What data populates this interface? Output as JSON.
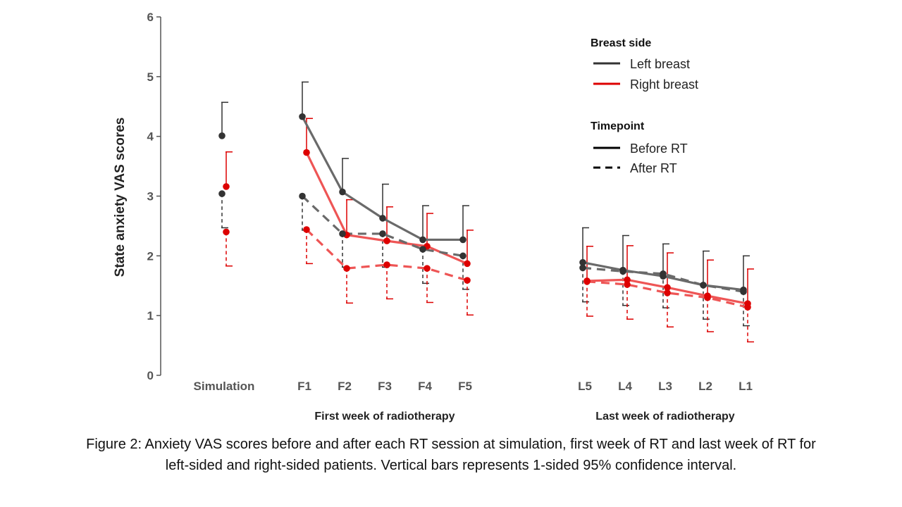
{
  "chart_data": {
    "type": "line",
    "ylabel": "State anxiety VAS scores",
    "ylim": [
      0,
      6
    ],
    "yticks": [
      "0",
      "1",
      "2",
      "3",
      "4",
      "5",
      "6"
    ],
    "categories": [
      "Simulation",
      "F1",
      "F2",
      "F3",
      "F4",
      "F5",
      "L5",
      "L4",
      "L3",
      "L2",
      "L1"
    ],
    "groups": [
      {
        "label": "First week of radiotherapy",
        "categories": [
          "F1",
          "F2",
          "F3",
          "F4",
          "F5"
        ]
      },
      {
        "label": "Last week of radiotherapy",
        "categories": [
          "L5",
          "L4",
          "L3",
          "L2",
          "L1"
        ]
      }
    ],
    "legend": {
      "breast_side_title": "Breast side",
      "breast_side": [
        {
          "label": "Left breast",
          "color": "#333333"
        },
        {
          "label": "Right breast",
          "color": "#dd0000"
        }
      ],
      "timepoint_title": "Timepoint",
      "timepoint": [
        {
          "label": "Before RT",
          "dash": "solid"
        },
        {
          "label": "After RT",
          "dash": "dashed"
        }
      ]
    },
    "series": [
      {
        "side": "left",
        "timepoint": "before",
        "values": [
          4.01,
          4.33,
          3.07,
          2.63,
          2.27,
          2.27,
          1.89,
          1.76,
          1.66,
          1.51,
          1.43
        ],
        "ci": [
          4.57,
          4.91,
          3.63,
          3.2,
          2.84,
          2.84,
          2.47,
          2.34,
          2.2,
          2.08,
          2.0
        ],
        "ci_direction": "up"
      },
      {
        "side": "right",
        "timepoint": "before",
        "values": [
          3.16,
          3.73,
          2.35,
          2.25,
          2.16,
          1.87,
          1.58,
          1.6,
          1.47,
          1.33,
          1.2
        ],
        "ci": [
          3.74,
          4.3,
          2.94,
          2.82,
          2.71,
          2.43,
          2.16,
          2.17,
          2.05,
          1.93,
          1.78
        ],
        "ci_direction": "up"
      },
      {
        "side": "left",
        "timepoint": "after",
        "values": [
          3.04,
          3.0,
          2.37,
          2.37,
          2.11,
          2.0,
          1.8,
          1.74,
          1.7,
          1.51,
          1.4
        ],
        "ci": [
          2.47,
          2.43,
          1.81,
          1.81,
          1.54,
          1.44,
          1.23,
          1.17,
          1.13,
          0.94,
          0.83
        ],
        "ci_direction": "down"
      },
      {
        "side": "right",
        "timepoint": "after",
        "values": [
          2.4,
          2.44,
          1.79,
          1.85,
          1.79,
          1.59,
          1.57,
          1.52,
          1.38,
          1.3,
          1.14
        ],
        "ci": [
          1.83,
          1.87,
          1.21,
          1.28,
          1.22,
          1.01,
          0.99,
          0.94,
          0.81,
          0.73,
          0.56
        ],
        "ci_direction": "down"
      }
    ]
  },
  "caption_line1": "Figure 2: Anxiety VAS scores before and after each RT session at simulation, first week of RT and last week of RT for",
  "caption_line2": "left-sided and right-sided patients. Vertical bars represents 1-sided 95% confidence interval."
}
